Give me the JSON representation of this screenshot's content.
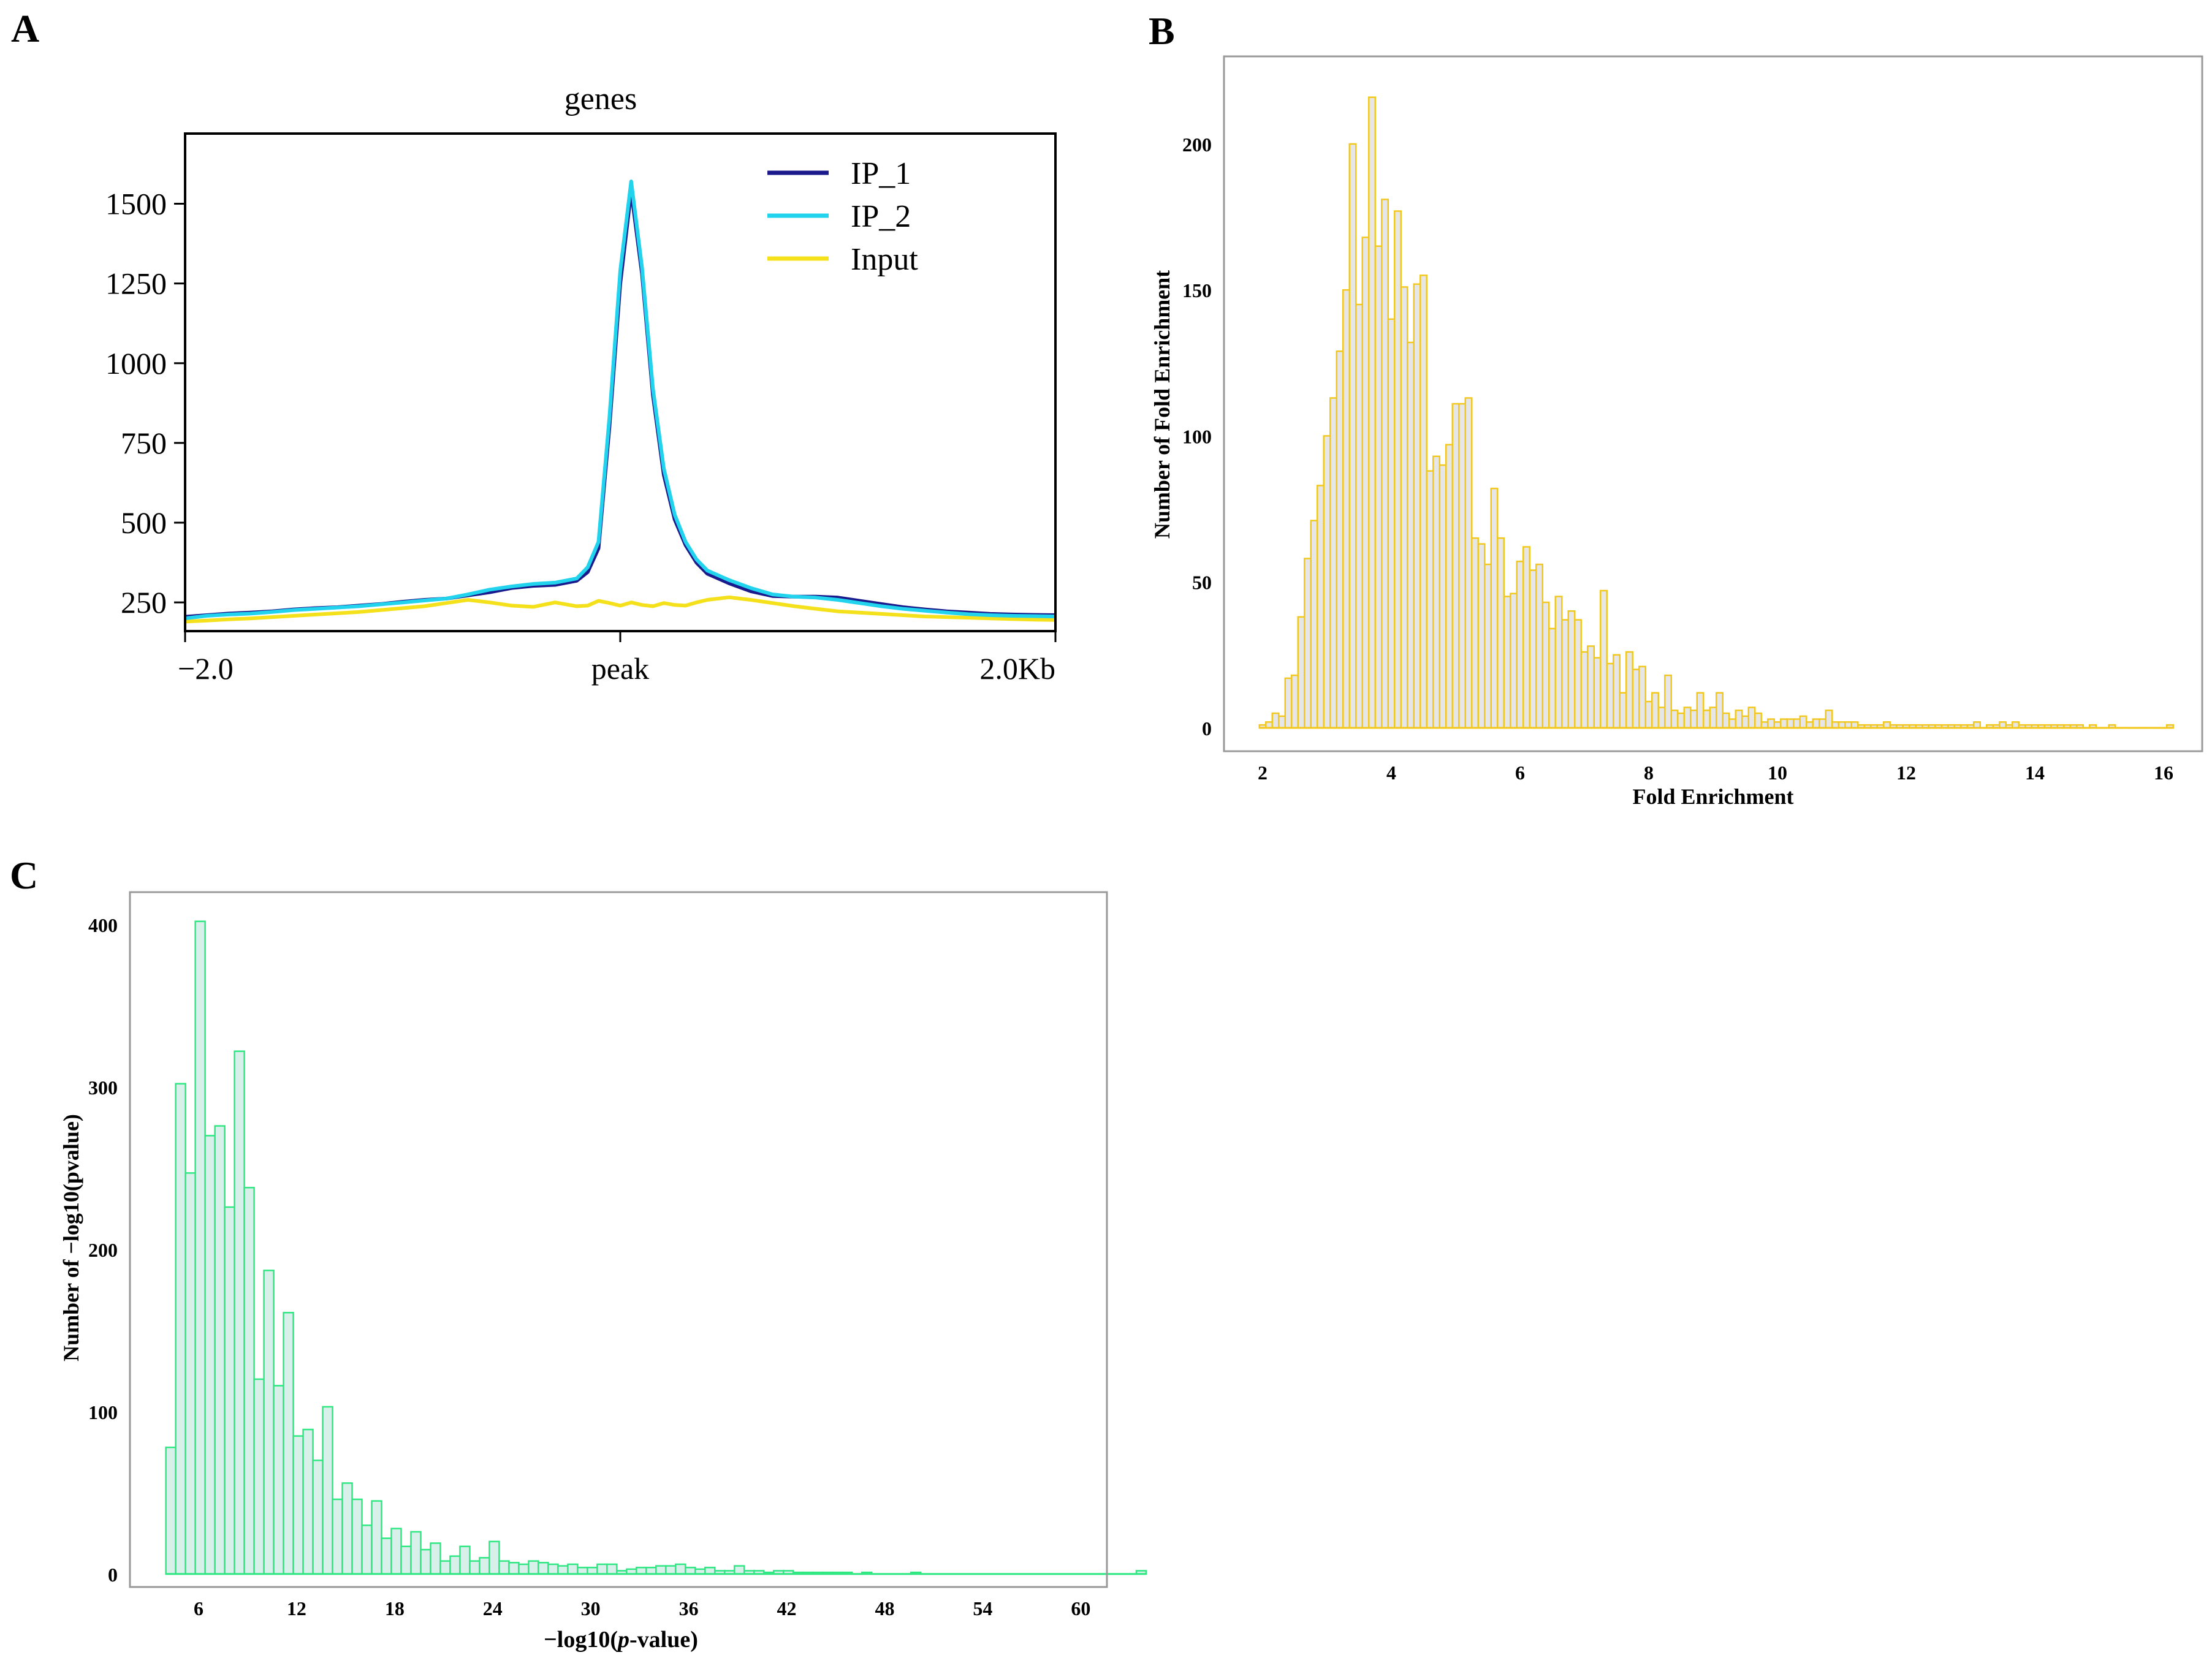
{
  "panels": {
    "A": {
      "letter": "A",
      "chart_data": {
        "type": "line",
        "title": "genes",
        "xlabel": "",
        "ylabel": "",
        "x_tick_labels": [
          "−2.0",
          "peak",
          "2.0Kb"
        ],
        "x_tick_values": [
          -2.0,
          0.0,
          2.0
        ],
        "xlim": [
          -2.0,
          2.0
        ],
        "ylim": [
          160,
          1720
        ],
        "y_ticks": [
          250,
          500,
          750,
          1000,
          1250,
          1500
        ],
        "legend_position": "top-right",
        "x": [
          -2.0,
          -1.9,
          -1.8,
          -1.7,
          -1.6,
          -1.5,
          -1.4,
          -1.3,
          -1.2,
          -1.1,
          -1.0,
          -0.9,
          -0.8,
          -0.7,
          -0.6,
          -0.5,
          -0.4,
          -0.3,
          -0.2,
          -0.15,
          -0.1,
          -0.05,
          0.0,
          0.05,
          0.1,
          0.15,
          0.2,
          0.25,
          0.3,
          0.35,
          0.4,
          0.5,
          0.6,
          0.7,
          0.8,
          0.9,
          1.0,
          1.1,
          1.2,
          1.3,
          1.4,
          1.5,
          1.6,
          1.7,
          1.8,
          1.9,
          2.0
        ],
        "series": [
          {
            "name": "IP_1",
            "color": "#1a1a8c",
            "values": [
              205,
              210,
              215,
              218,
              222,
              228,
              232,
              235,
              240,
              245,
              252,
              258,
              262,
              272,
              282,
              295,
              302,
              305,
              318,
              345,
              420,
              800,
              1250,
              1540,
              1280,
              900,
              650,
              510,
              430,
              375,
              340,
              310,
              285,
              270,
              268,
              268,
              265,
              255,
              245,
              235,
              228,
              222,
              218,
              214,
              212,
              211,
              210
            ]
          },
          {
            "name": "IP_2",
            "color": "#22d3ee",
            "values": [
              200,
              208,
              212,
              215,
              220,
              226,
              230,
              234,
              238,
              244,
              250,
              256,
              262,
              275,
              290,
              300,
              308,
              312,
              325,
              360,
              440,
              830,
              1290,
              1570,
              1300,
              920,
              670,
              525,
              440,
              385,
              350,
              320,
              295,
              275,
              268,
              265,
              258,
              248,
              238,
              230,
              224,
              218,
              213,
              210,
              208,
              207,
              206
            ]
          },
          {
            "name": "Input",
            "color": "#f5e11b",
            "values": [
              190,
              193,
              197,
              200,
              204,
              208,
              212,
              216,
              220,
              226,
              232,
              238,
              248,
              258,
              250,
              240,
              236,
              250,
              238,
              240,
              255,
              248,
              240,
              250,
              242,
              238,
              248,
              242,
              240,
              250,
              258,
              266,
              258,
              248,
              238,
              230,
              222,
              218,
              214,
              210,
              206,
              204,
              202,
              200,
              198,
              196,
              195
            ]
          }
        ]
      }
    },
    "B": {
      "letter": "B",
      "chart_data": {
        "type": "bar",
        "title": "",
        "xlabel": "Fold Enrichment",
        "ylabel": "Number of Fold Enrichment",
        "xlim": [
          1.4,
          16.6
        ],
        "ylim": [
          -8,
          230
        ],
        "x_ticks": [
          2,
          4,
          6,
          8,
          10,
          12,
          14,
          16
        ],
        "y_ticks": [
          0,
          50,
          100,
          150,
          200
        ],
        "bin_start": 1.95,
        "bin_width": 0.1,
        "fill": "#e6e6e6",
        "edge": "#f2c81f",
        "values": [
          1,
          2,
          5,
          4,
          17,
          18,
          38,
          58,
          71,
          83,
          100,
          113,
          129,
          150,
          200,
          145,
          168,
          216,
          165,
          181,
          140,
          177,
          151,
          132,
          152,
          155,
          88,
          93,
          90,
          97,
          111,
          111,
          113,
          65,
          63,
          56,
          82,
          65,
          45,
          46,
          57,
          62,
          54,
          56,
          43,
          34,
          45,
          37,
          40,
          37,
          26,
          28,
          24,
          47,
          22,
          25,
          12,
          26,
          20,
          21,
          9,
          12,
          7,
          18,
          6,
          5,
          7,
          6,
          12,
          6,
          7,
          12,
          5,
          3,
          6,
          4,
          7,
          5,
          2,
          3,
          2,
          3,
          3,
          3,
          4,
          2,
          3,
          3,
          6,
          2,
          2,
          2,
          2,
          1,
          1,
          1,
          1,
          2,
          1,
          1,
          1,
          1,
          1,
          1,
          1,
          1,
          1,
          1,
          1,
          1,
          1,
          2,
          0,
          1,
          1,
          2,
          1,
          2,
          1,
          1,
          1,
          1,
          1,
          1,
          1,
          1,
          1,
          1,
          0,
          1,
          0,
          0,
          1,
          0,
          0,
          0,
          0,
          0,
          0,
          0,
          0,
          1
        ]
      }
    },
    "C": {
      "letter": "C",
      "chart_data": {
        "type": "bar",
        "title": "",
        "xlabel_prefix": "−log10(",
        "xlabel_italic": "p",
        "xlabel_suffix": "-value)",
        "ylabel": "Number of −log10(pvalue)",
        "xlim": [
          1.8,
          61.6
        ],
        "ylim": [
          -8,
          420
        ],
        "x_ticks": [
          6,
          12,
          18,
          24,
          30,
          36,
          42,
          48,
          54,
          60
        ],
        "y_ticks": [
          0,
          100,
          200,
          300,
          400
        ],
        "bin_start": 4.0,
        "bin_width": 0.6,
        "fill": "#d8f0ea",
        "edge": "#2ee882",
        "values": [
          78,
          302,
          247,
          402,
          270,
          276,
          226,
          322,
          238,
          120,
          187,
          116,
          161,
          85,
          89,
          70,
          103,
          46,
          56,
          46,
          30,
          45,
          22,
          28,
          17,
          26,
          15,
          19,
          8,
          11,
          17,
          8,
          10,
          20,
          8,
          7,
          6,
          8,
          7,
          6,
          5,
          6,
          4,
          4,
          6,
          6,
          2,
          3,
          4,
          4,
          5,
          5,
          6,
          4,
          3,
          4,
          2,
          2,
          5,
          2,
          2,
          1,
          2,
          2,
          1,
          1,
          1,
          1,
          1,
          1,
          0,
          1,
          0,
          0,
          0,
          0,
          1,
          0,
          0,
          0,
          0,
          0,
          0,
          0,
          0,
          0,
          0,
          0,
          0,
          0,
          0,
          0,
          0,
          0,
          0,
          0,
          0,
          0,
          0,
          2
        ]
      }
    }
  }
}
